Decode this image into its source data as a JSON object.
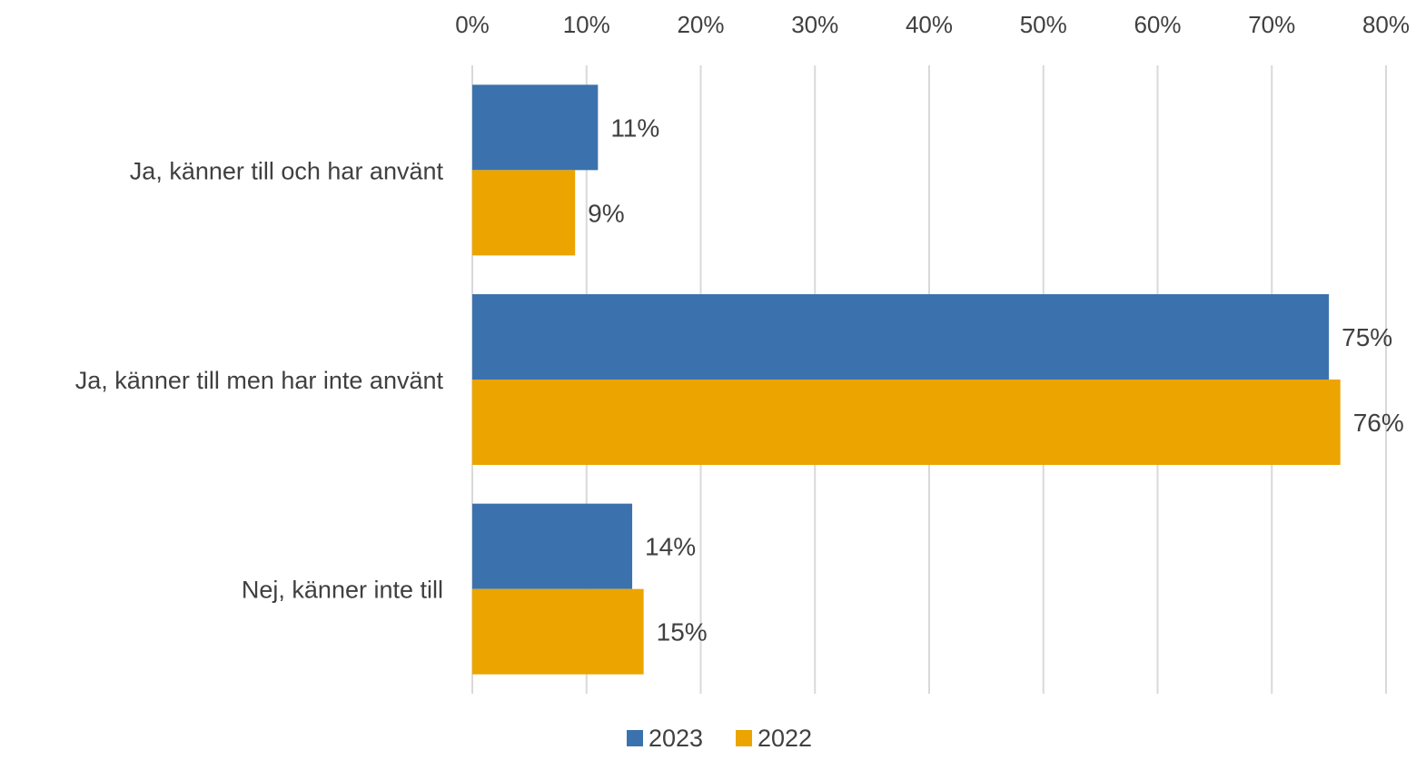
{
  "chart_data": {
    "type": "bar",
    "orientation": "horizontal",
    "categories": [
      "Ja, känner till och har använt",
      "Ja, känner till men har inte använt",
      "Nej, känner inte till"
    ],
    "series": [
      {
        "name": "2023",
        "values": [
          11,
          75,
          14
        ],
        "color": "#3b72ad",
        "labels": [
          "11%",
          "75%",
          "14%"
        ]
      },
      {
        "name": "2022",
        "values": [
          9,
          76,
          15
        ],
        "color": "#eba400",
        "labels": [
          "9%",
          "76%",
          "15%"
        ]
      }
    ],
    "xticks": [
      "0%",
      "10%",
      "20%",
      "30%",
      "40%",
      "50%",
      "60%",
      "70%",
      "80%"
    ],
    "xlim": [
      0,
      80
    ],
    "x_axis_position": "top",
    "grid": true,
    "legend": "bottom",
    "title": "",
    "xlabel": "",
    "ylabel": ""
  }
}
